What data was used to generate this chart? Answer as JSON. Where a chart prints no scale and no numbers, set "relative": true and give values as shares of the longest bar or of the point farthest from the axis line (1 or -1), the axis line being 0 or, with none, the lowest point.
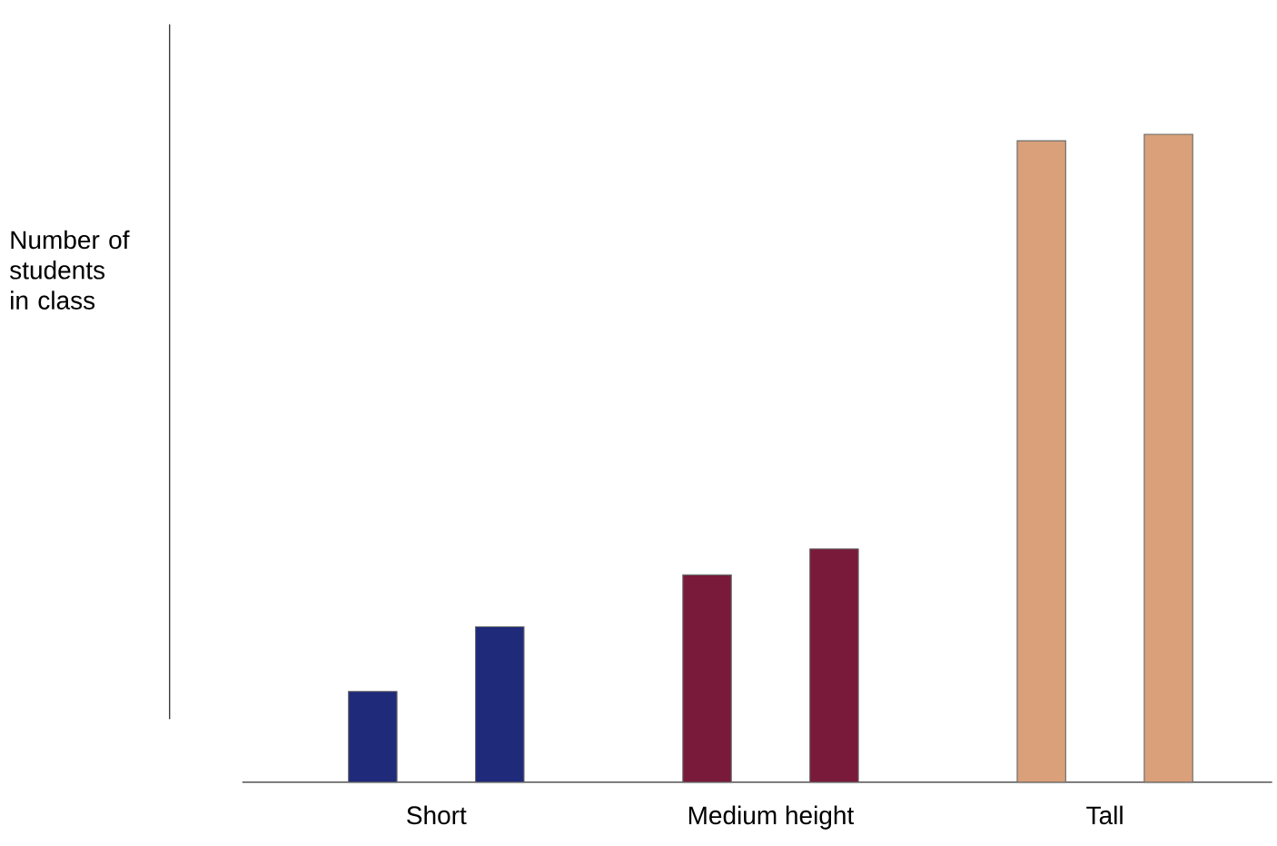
{
  "chart_data": {
    "type": "bar",
    "relative": true,
    "ylabel": "Number of students in class",
    "categories": [
      "Short",
      "Medium height",
      "Tall"
    ],
    "series": [
      {
        "colors": [
          "#1f2a7a",
          "#7a1a3a",
          "#d9a07a"
        ],
        "values": [
          0.14,
          0.32,
          0.99
        ]
      },
      {
        "colors": [
          "#1f2a7a",
          "#7a1a3a",
          "#d9a07a"
        ],
        "values": [
          0.24,
          0.36,
          1
        ]
      }
    ]
  }
}
